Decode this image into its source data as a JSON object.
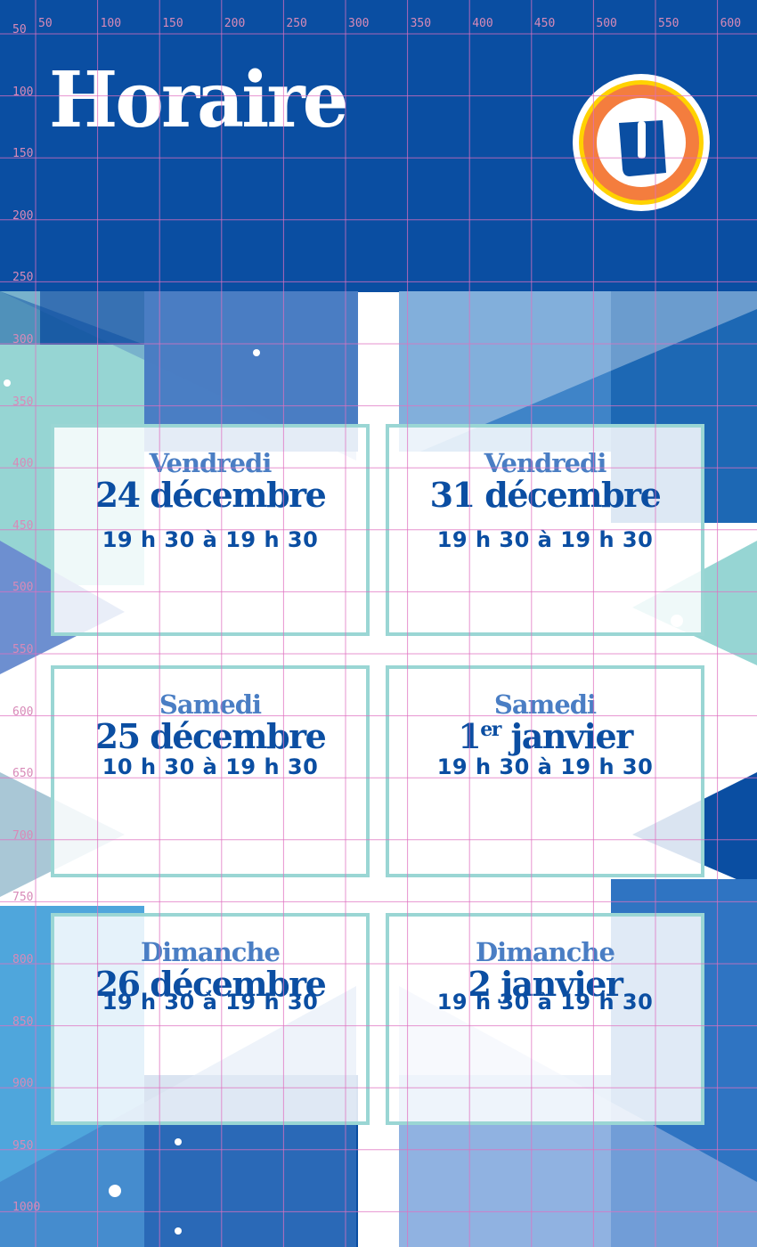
{
  "header": {
    "title": "Horaire",
    "logo": "U"
  },
  "colors": {
    "brand_blue": "#0a4ea2",
    "day_blue": "#4a7ec4",
    "card_border": "#9ad6d4",
    "logo_orange": "#f47d3e",
    "logo_yellow": "#ffd200",
    "guide_lines": "#e070c0"
  },
  "cards": [
    {
      "day": "Vendredi",
      "date": "24 décembre",
      "hours": "19 h 30 à 19 h 30"
    },
    {
      "day": "Vendredi",
      "date": "31 décembre",
      "hours": "19 h 30 à 19 h 30"
    },
    {
      "day": "Samedi",
      "date": "25 décembre",
      "hours": "10 h 30 à 19 h 30"
    },
    {
      "day": "Samedi",
      "date": "1",
      "date_sup": "er",
      "date_rest": " janvier",
      "hours": "19 h 30 à 19 h 30"
    },
    {
      "day": "Dimanche",
      "date": "26 décembre",
      "hours": "19 h 30 à 19 h 30"
    },
    {
      "day": "Dimanche",
      "date": "2 janvier",
      "hours": "19 h 30 à 19 h 30"
    }
  ],
  "rulers": {
    "top": [
      "50",
      "100",
      "150",
      "200",
      "250",
      "300",
      "350",
      "400",
      "450",
      "500",
      "550",
      "600"
    ],
    "left": [
      "50",
      "100",
      "150",
      "200",
      "250",
      "300",
      "350",
      "400",
      "450",
      "500",
      "550",
      "600",
      "650",
      "700",
      "750",
      "800",
      "850",
      "900",
      "950",
      "1000"
    ]
  }
}
